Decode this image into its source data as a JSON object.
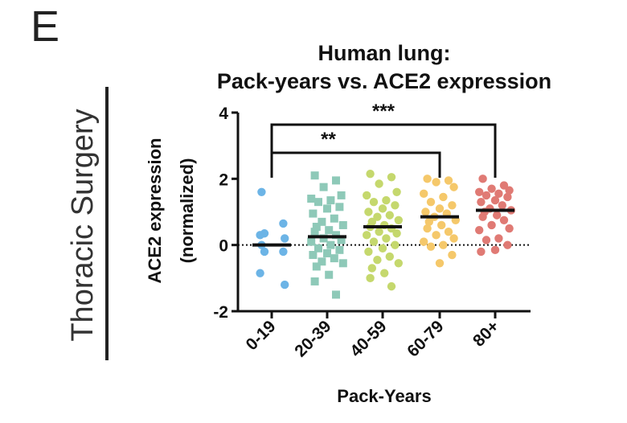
{
  "panel_letter": "E",
  "side_label": "Thoracic Surgery",
  "chart_data": {
    "type": "scatter",
    "title_line1": "Human lung:",
    "title_line2": "Pack-years vs. ACE2 expression",
    "ylabel_line1": "ACE2 expression",
    "ylabel_line2": "(normalized)",
    "xlabel": "Pack-Years",
    "ylim": [
      -2,
      4
    ],
    "yticks": [
      -2,
      0,
      2,
      4
    ],
    "reference_line_y": 0,
    "categories": [
      "0-19",
      "20-39",
      "40-59",
      "60-79",
      "80+"
    ],
    "series": [
      {
        "category": "0-19",
        "color": "#6cb4e6",
        "marker": "circle",
        "mean": 0.0,
        "points": [
          1.6,
          0.65,
          0.35,
          0.3,
          0.2,
          0.0,
          -0.2,
          -0.2,
          -0.85,
          -1.2
        ]
      },
      {
        "category": "20-39",
        "color": "#8ec9b8",
        "marker": "square",
        "mean": 0.25,
        "points": [
          2.1,
          1.95,
          1.75,
          1.5,
          1.4,
          1.35,
          1.3,
          1.15,
          1.1,
          0.95,
          0.8,
          0.7,
          0.6,
          0.55,
          0.45,
          0.4,
          0.3,
          0.2,
          0.15,
          0.1,
          0.0,
          -0.1,
          -0.15,
          -0.25,
          -0.3,
          -0.4,
          -0.5,
          -0.55,
          -0.65,
          -0.9,
          -1.1,
          -1.5
        ]
      },
      {
        "category": "40-59",
        "color": "#c5d86d",
        "marker": "circle",
        "mean": 0.55,
        "points": [
          2.15,
          2.05,
          1.85,
          1.6,
          1.5,
          1.35,
          1.3,
          1.2,
          1.1,
          1.0,
          0.9,
          0.85,
          0.75,
          0.7,
          0.6,
          0.55,
          0.5,
          0.4,
          0.35,
          0.3,
          0.2,
          0.1,
          0.0,
          -0.1,
          -0.2,
          -0.35,
          -0.45,
          -0.55,
          -0.7,
          -0.85,
          -1.0,
          -1.25
        ]
      },
      {
        "category": "60-79",
        "color": "#f5c86a",
        "marker": "circle",
        "mean": 0.85,
        "points": [
          2.0,
          1.95,
          1.9,
          1.75,
          1.55,
          1.45,
          1.3,
          1.2,
          1.1,
          1.0,
          0.95,
          0.85,
          0.75,
          0.7,
          0.6,
          0.5,
          0.4,
          0.3,
          0.2,
          0.1,
          0.0,
          -0.05,
          -0.3,
          -0.55
        ]
      },
      {
        "category": "80+",
        "color": "#e07a74",
        "marker": "circle",
        "mean": 1.05,
        "points": [
          2.0,
          1.8,
          1.7,
          1.65,
          1.6,
          1.55,
          1.5,
          1.45,
          1.35,
          1.3,
          1.2,
          1.1,
          1.05,
          1.0,
          0.9,
          0.85,
          0.75,
          0.6,
          0.5,
          0.45,
          0.2,
          0.15,
          0.0,
          -0.15,
          -0.2
        ]
      }
    ],
    "significance": [
      {
        "from": "0-19",
        "to": "60-79",
        "label": "**"
      },
      {
        "from": "0-19",
        "to": "80+",
        "label": "***"
      }
    ]
  }
}
